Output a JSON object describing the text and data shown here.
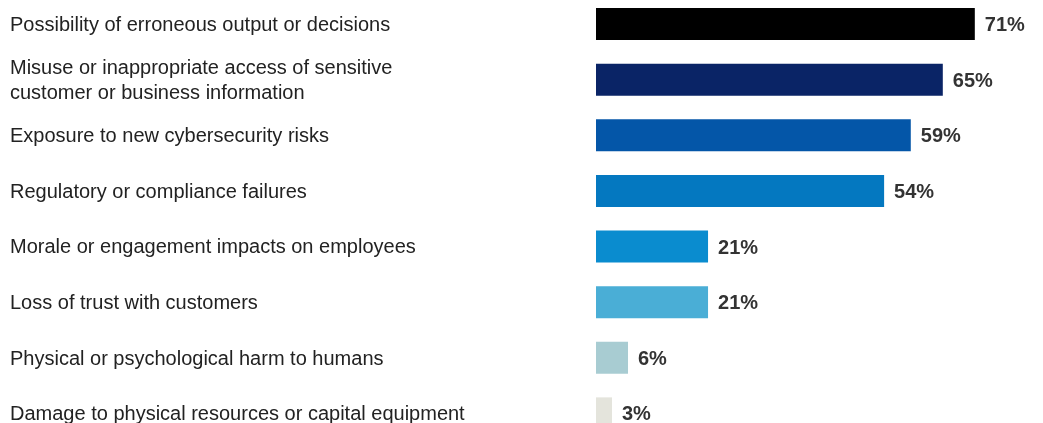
{
  "chart_data": {
    "type": "bar",
    "orientation": "horizontal",
    "categories": [
      "Possibility of erroneous output or decisions",
      "Misuse or inappropriate access of sensitive customer or business information",
      "Exposure to new cybersecurity risks",
      "Regulatory or compliance failures",
      "Morale or engagement impacts on employees",
      "Loss of trust with customers",
      "Physical or psychological harm to humans",
      "Damage to physical resources or capital equipment"
    ],
    "values": [
      71,
      65,
      59,
      54,
      21,
      21,
      6,
      3
    ],
    "value_labels": [
      "71%",
      "65%",
      "59%",
      "54%",
      "21%",
      "21%",
      "6%",
      "3%"
    ],
    "colors": [
      "#000000",
      "#0a2466",
      "#0456a8",
      "#0478c0",
      "#0a8ccf",
      "#4aaed6",
      "#a8ccd2",
      "#e4e4dc"
    ],
    "legend": false
  }
}
